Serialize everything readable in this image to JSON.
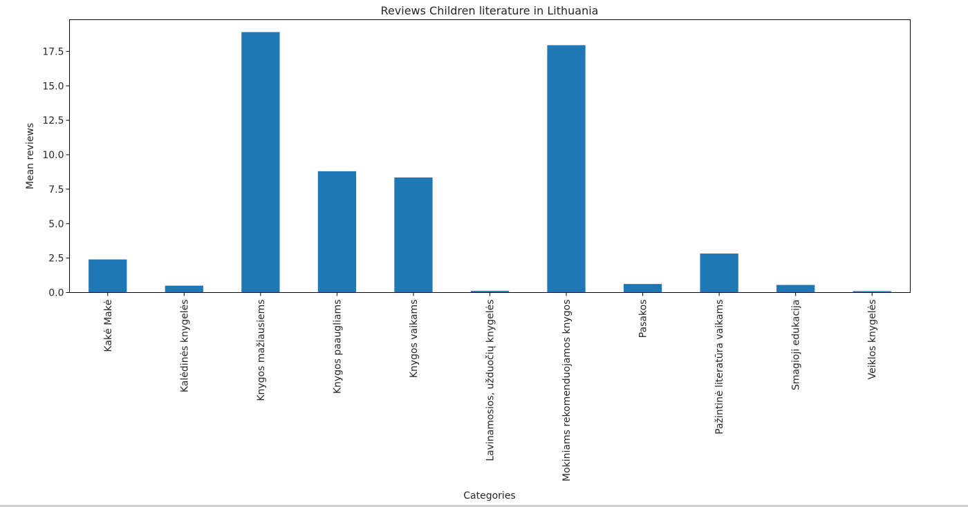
{
  "chart_data": {
    "type": "bar",
    "title": "Reviews Children literature in Lithuania",
    "xlabel": "Categories",
    "ylabel": "Mean reviews",
    "categories": [
      "Kakė Makė",
      "Kalėdinės knygelės",
      "Knygos mažiausiems",
      "Knygos paaugliams",
      "Knygos vaikams",
      "Lavinamosios, užduočių knygelės",
      "Mokiniams rekomenduojamos knygos",
      "Pasakos",
      "Pažintinė literatūra vaikams",
      "Smagioji edukacija",
      "Veiklos knygelės"
    ],
    "values": [
      2.4,
      0.5,
      18.9,
      8.8,
      8.35,
      0.12,
      17.95,
      0.62,
      2.83,
      0.55,
      0.1
    ],
    "ylim": [
      0,
      19.8
    ],
    "yticks": [
      0.0,
      2.5,
      5.0,
      7.5,
      10.0,
      12.5,
      15.0,
      17.5
    ],
    "ytick_labels": [
      "0.0",
      "2.5",
      "5.0",
      "7.5",
      "10.0",
      "12.5",
      "15.0",
      "17.5"
    ],
    "bar_color": "#1f77b4",
    "grid": false,
    "legend": "none"
  }
}
